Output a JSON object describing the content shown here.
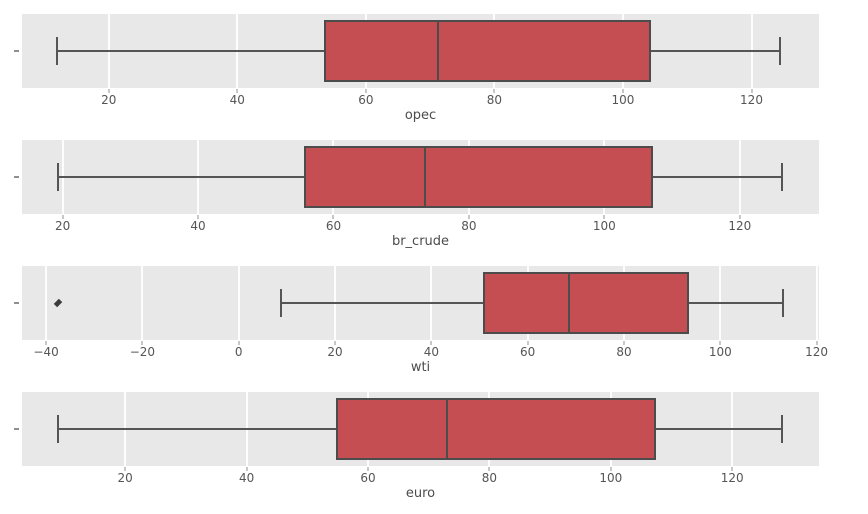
{
  "figure": {
    "title": "",
    "style": {
      "plot_bg": "#e8e8e8",
      "grid_color": "#fdfdfd",
      "box_fill": "#c44e52",
      "box_edge": "#4c4c4c",
      "whisker_color": "#555555",
      "flier_color": "#3c3c3c",
      "tick_mark_color": "#8f8f8f",
      "tick_text_color": "#555555",
      "label_text_color": "#4c4c4c"
    }
  },
  "chart_data": [
    {
      "type": "box",
      "orientation": "horizontal",
      "xlabel": "opec",
      "xlim": [
        6.5,
        130.5
      ],
      "ticks": [
        20,
        40,
        60,
        80,
        100,
        120
      ],
      "whisker_low": 12.0,
      "q1": 53.5,
      "median": 71.3,
      "q3": 104.3,
      "whisker_high": 124.5,
      "outliers": [],
      "grid": true,
      "legend": false
    },
    {
      "type": "box",
      "orientation": "horizontal",
      "xlabel": "br_crude",
      "xlim": [
        14.0,
        131.7
      ],
      "ticks": [
        20,
        40,
        60,
        80,
        100,
        120
      ],
      "whisker_low": 19.3,
      "q1": 55.7,
      "median": 73.5,
      "q3": 107.2,
      "whisker_high": 126.3,
      "outliers": [],
      "grid": true,
      "legend": false
    },
    {
      "type": "box",
      "orientation": "horizontal",
      "xlabel": "wti",
      "xlim": [
        -45.0,
        120.5
      ],
      "ticks": [
        -40,
        -20,
        0,
        20,
        40,
        60,
        80,
        100,
        120
      ],
      "whisker_low": 8.8,
      "q1": 50.8,
      "median": 68.5,
      "q3": 93.6,
      "whisker_high": 113.0,
      "outliers": [
        -37.6
      ],
      "grid": true,
      "legend": false
    },
    {
      "type": "box",
      "orientation": "horizontal",
      "xlabel": "euro",
      "xlim": [
        3.0,
        134.3
      ],
      "ticks": [
        20,
        40,
        60,
        80,
        100,
        120
      ],
      "whisker_low": 9.0,
      "q1": 54.8,
      "median": 73.0,
      "q3": 107.4,
      "whisker_high": 128.2,
      "outliers": [],
      "grid": true,
      "legend": false
    }
  ]
}
